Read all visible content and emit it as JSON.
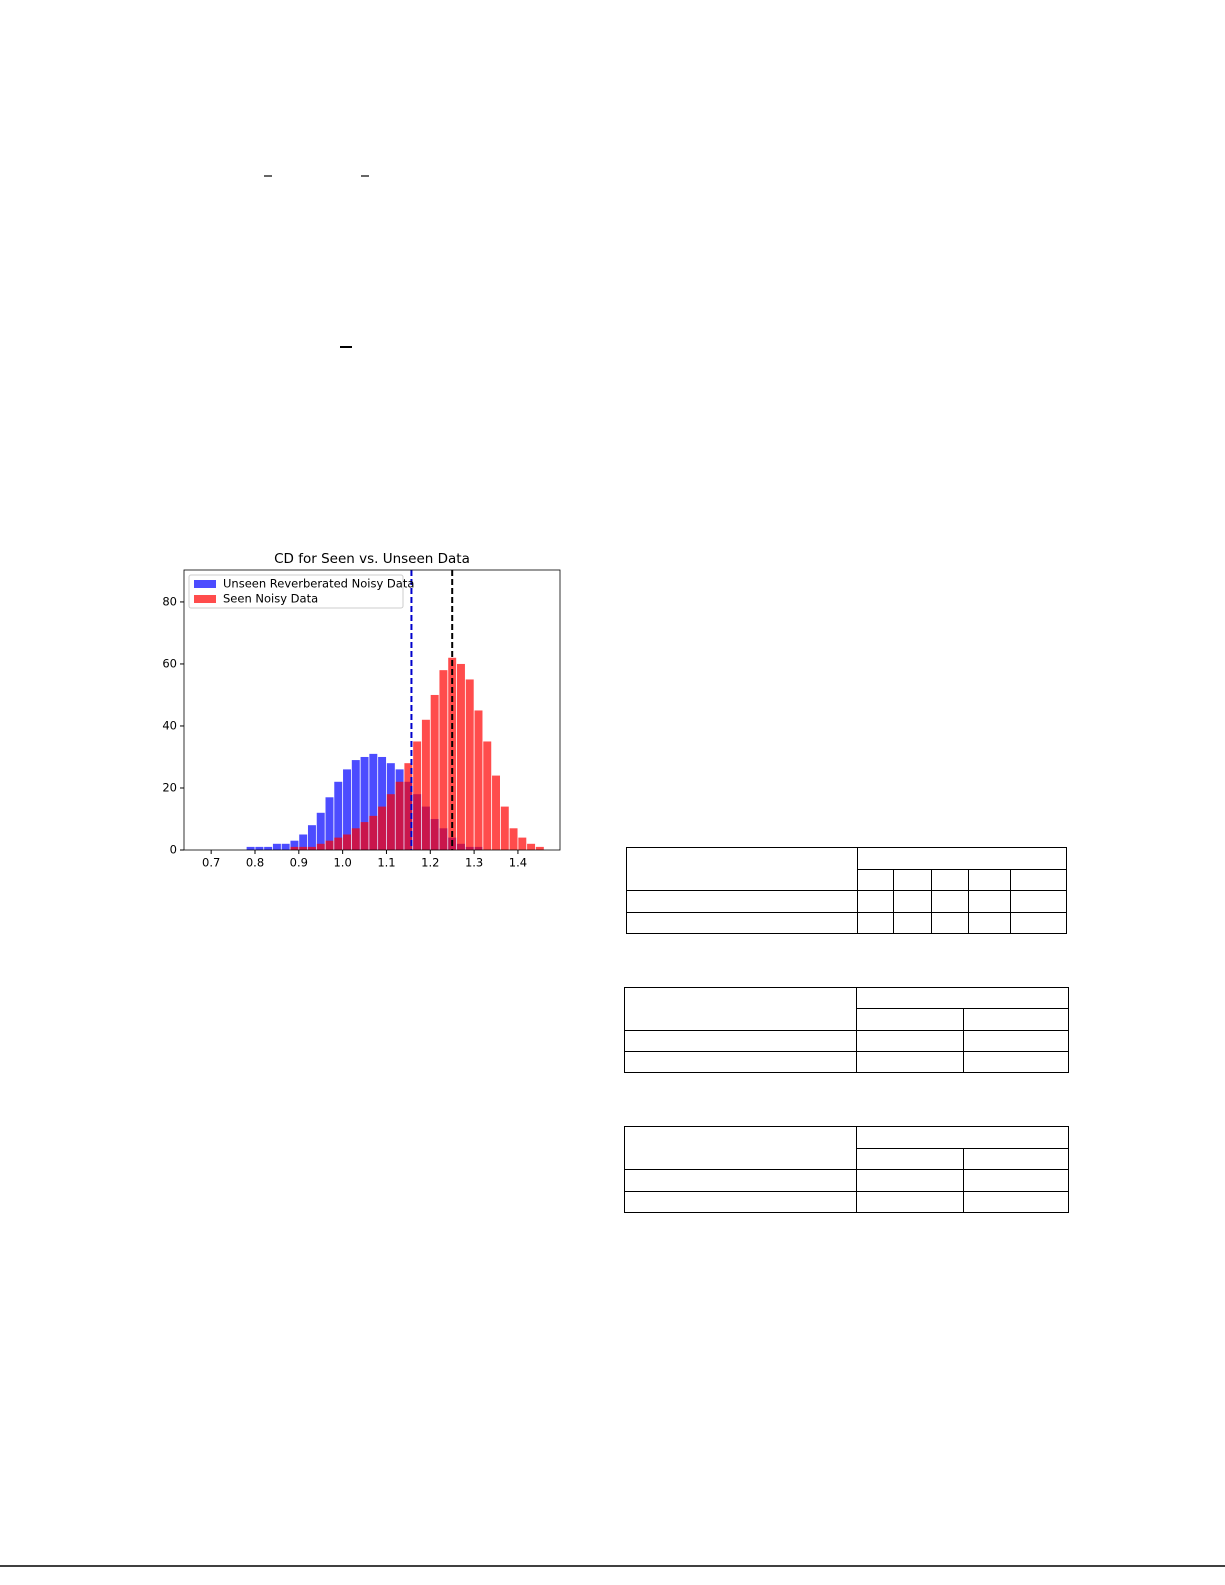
{
  "chart_data": {
    "type": "histogram",
    "title": "CD for Seen vs. Unseen Data",
    "bins": [
      0.66,
      0.68,
      0.7,
      0.72,
      0.74,
      0.76,
      0.78,
      0.8,
      0.82,
      0.84,
      0.86,
      0.88,
      0.9,
      0.92,
      0.94,
      0.96,
      0.98,
      1.0,
      1.02,
      1.04,
      1.06,
      1.08,
      1.1,
      1.12,
      1.14,
      1.16,
      1.18,
      1.2,
      1.22,
      1.24,
      1.26,
      1.28,
      1.3,
      1.32,
      1.34,
      1.36,
      1.38,
      1.4,
      1.42,
      1.44,
      1.46,
      1.48
    ],
    "series": [
      {
        "name": "Unseen Reverberated Noisy Data",
        "color": "#0000ff",
        "opacity": 0.7,
        "values": [
          0,
          0,
          0,
          0,
          0,
          0,
          1,
          1,
          1,
          2,
          2,
          3,
          5,
          8,
          12,
          17,
          22,
          26,
          29,
          30,
          31,
          30,
          28,
          26,
          22,
          18,
          14,
          10,
          7,
          4,
          2,
          1,
          1,
          0,
          0,
          0,
          0,
          0,
          0,
          0,
          0
        ]
      },
      {
        "name": "Seen Noisy Data",
        "color": "#ff0000",
        "opacity": 0.7,
        "values": [
          0,
          0,
          0,
          0,
          0,
          0,
          0,
          0,
          0,
          0,
          0,
          1,
          1,
          1,
          2,
          3,
          4,
          5,
          7,
          9,
          11,
          14,
          18,
          22,
          28,
          35,
          42,
          50,
          58,
          62,
          60,
          55,
          45,
          35,
          24,
          14,
          7,
          4,
          2,
          1,
          0
        ]
      }
    ],
    "vlines": [
      {
        "x": 1.157,
        "color": "#0000cc"
      },
      {
        "x": 1.25,
        "color": "#000000"
      }
    ],
    "xlim": [
      0.638,
      1.496
    ],
    "ylim": [
      0,
      90.3
    ],
    "xticks": [
      0.7,
      0.8,
      0.9,
      {
        "value": 1,
        "label": "1.0"
      },
      1.1,
      1.2,
      1.3,
      1.4
    ],
    "yticks": [
      0,
      20,
      40,
      60,
      80
    ],
    "legend": "upper left"
  }
}
